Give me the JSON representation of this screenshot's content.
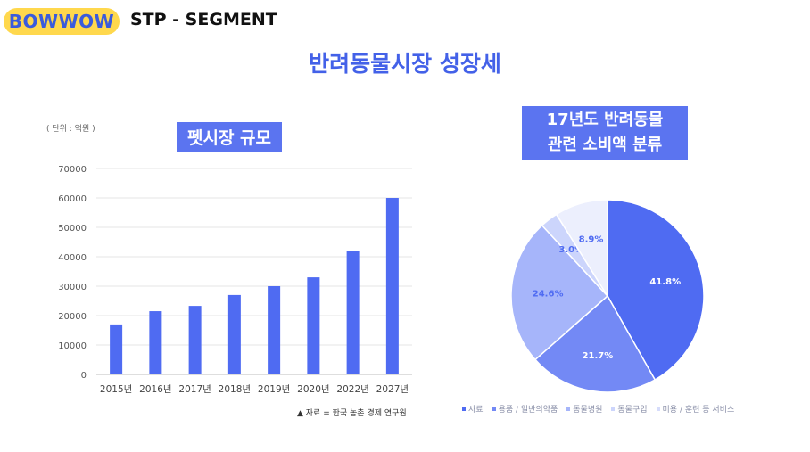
{
  "header": {
    "brand": "BOWWOW",
    "title": "STP - SEGMENT"
  },
  "main_title": "반려동물시장 성장세",
  "bar_section": {
    "label": "펫시장 규모",
    "unit_note": "( 단위 : 억원 )",
    "source": "▲ 자료 = 한국 농촌 경제 연구원"
  },
  "pie_section": {
    "label_line1": "17년도 반려동물",
    "label_line2": "관련 소비액 분류"
  },
  "colors": {
    "accent": "#4361e8",
    "bar": "#4f6bf2",
    "badge": "#ffd84d"
  },
  "chart_data": [
    {
      "type": "bar",
      "title": "펫시장 규모",
      "categories": [
        "2015년",
        "2016년",
        "2017년",
        "2018년",
        "2019년",
        "2020년",
        "2022년",
        "2027년"
      ],
      "values": [
        17000,
        21500,
        23300,
        27000,
        30000,
        33000,
        42000,
        60000
      ],
      "ylim": [
        0,
        70000
      ],
      "yticks": [
        0,
        10000,
        20000,
        30000,
        40000,
        50000,
        60000,
        70000
      ],
      "grid": true,
      "xlabel": "",
      "ylabel": ""
    },
    {
      "type": "pie",
      "title": "17년도 반려동물 관련 소비액 분류",
      "slices": [
        {
          "name": "사료",
          "value": 41.8,
          "label": "41.8%",
          "color": "#4f6bf2",
          "label_color": "#ffffff"
        },
        {
          "name": "용품 / 일반의약품",
          "value": 21.7,
          "label": "21.7%",
          "color": "#7389f5",
          "label_color": "#ffffff"
        },
        {
          "name": "동물병원",
          "value": 24.6,
          "label": "24.6%",
          "color": "#a6b5fa",
          "label_color": "#4f6bf2"
        },
        {
          "name": "동물구입",
          "value": 3.0,
          "label": "3.0%",
          "color": "#ccd5fc",
          "label_color": "#4f6bf2"
        },
        {
          "name": "미용 / 훈련 등 서비스",
          "value": 8.9,
          "label": "8.9%",
          "color": "#eceffd",
          "label_color": "#4f6bf2"
        }
      ],
      "legend_position": "bottom"
    }
  ]
}
